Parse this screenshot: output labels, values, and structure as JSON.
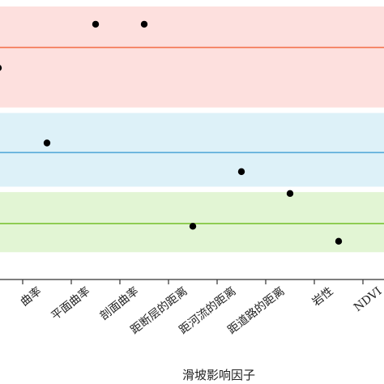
{
  "chart_data": {
    "type": "scatter",
    "xlabel": "滑坡影响因子",
    "ylabel": "",
    "title": "",
    "categories": [
      "曲率",
      "平面曲率",
      "剖面曲率",
      "距断层的距离",
      "距河流的距离",
      "距道路的距离",
      "岩性",
      "NDVI"
    ],
    "x_visible_from": -0.95,
    "y_axis_range": [
      0.0,
      1.0
    ],
    "points": [
      {
        "x": -1,
        "y": 0.775
      },
      {
        "x": 1,
        "y": 0.935
      },
      {
        "x": 2,
        "y": 0.935
      },
      {
        "x": 0,
        "y": 0.5
      },
      {
        "x": 3,
        "y": 0.195
      },
      {
        "x": 4,
        "y": 0.395
      },
      {
        "x": 5,
        "y": 0.315
      },
      {
        "x": 6,
        "y": 0.14
      }
    ],
    "bands": [
      {
        "y_from": 0.63,
        "y_to": 1.0,
        "color": "#fde0de"
      },
      {
        "y_from": 0.34,
        "y_to": 0.61,
        "color": "#ddf1f8"
      },
      {
        "y_from": 0.1,
        "y_to": 0.32,
        "color": "#e2f5d4"
      }
    ],
    "reference_lines": [
      {
        "y": 0.85,
        "color": "#f4734f"
      },
      {
        "y": 0.465,
        "color": "#55a9d8"
      },
      {
        "y": 0.205,
        "color": "#7cc437"
      }
    ],
    "point_color": "#000000",
    "grid": false
  }
}
